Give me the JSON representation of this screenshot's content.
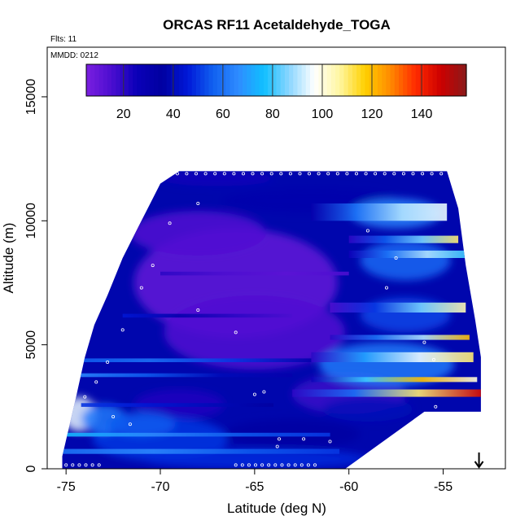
{
  "chart_data": {
    "type": "heatmap",
    "title": "ORCAS RF11 Acetaldehyde_TOGA",
    "flights_label": "Flts: 11",
    "date_label": "MMDD: 0212",
    "xlabel": "Latitude (deg N)",
    "ylabel": "Altitude (m)",
    "xlim": [
      -76,
      -51.7
    ],
    "ylim": [
      0,
      17000
    ],
    "x_ticks": [
      -75,
      -70,
      -65,
      -60,
      -55
    ],
    "x_tick_labels": [
      "-75",
      "-70",
      "-65",
      "-60",
      "-55"
    ],
    "y_ticks": [
      0,
      5000,
      10000,
      15000
    ],
    "y_tick_labels": [
      "0",
      "5000",
      "10000",
      "15000"
    ],
    "colorbar": {
      "min": 5,
      "max": 158,
      "ticks": [
        20,
        40,
        60,
        80,
        100,
        120,
        140
      ],
      "tick_labels": [
        "20",
        "40",
        "60",
        "80",
        "100",
        "120",
        "140"
      ],
      "colors": [
        "#7b1fe0",
        "#4b0ed0",
        "#0a00b8",
        "#0000a0",
        "#0018d8",
        "#1060f0",
        "#2f8cff",
        "#10bfff",
        "#8ad6ff",
        "#ffffff",
        "#fff6a0",
        "#ffd000",
        "#ff8a00",
        "#ff2a00",
        "#cc0000",
        "#8a1a1a"
      ]
    },
    "domain": {
      "lat_min": -75.2,
      "lat_max": -53,
      "alt_min": 0,
      "alt_max": 12000,
      "top_edge": [
        [
          -75.2,
          500
        ],
        [
          -74.5,
          2800
        ],
        [
          -74,
          4500
        ],
        [
          -73.5,
          5800
        ],
        [
          -72.8,
          7000
        ],
        [
          -72,
          8500
        ],
        [
          -71,
          10000
        ],
        [
          -70,
          11500
        ],
        [
          -69,
          12000
        ],
        [
          -54.8,
          12000
        ],
        [
          -54.2,
          10500
        ],
        [
          -53.8,
          8200
        ],
        [
          -53.3,
          6000
        ],
        [
          -53,
          4500
        ],
        [
          -53,
          2300
        ]
      ],
      "bottom_edge": [
        [
          -75.2,
          0
        ],
        [
          -60.2,
          0
        ],
        [
          -56,
          2300
        ],
        [
          -53,
          2300
        ]
      ]
    },
    "features": [
      {
        "name": "low-altitude southern gradient",
        "lat": -74.3,
        "alt": 2200,
        "value": 95
      },
      {
        "name": "northern high plume 3000m",
        "lat": -53.6,
        "alt": 3100,
        "value": 145
      },
      {
        "name": "northern high plume 4800m",
        "lat": -53.9,
        "alt": 4800,
        "value": 110
      },
      {
        "name": "northern high plume 9000m",
        "lat": -54.5,
        "alt": 9000,
        "value": 110
      },
      {
        "name": "upper layer maximum",
        "lat": -54.8,
        "alt": 10400,
        "value": 95
      },
      {
        "name": "mid-troposphere minimum",
        "lat": -66,
        "alt": 7500,
        "value": 10
      }
    ],
    "flight_arrow": {
      "lat": -53.1,
      "direction": "down"
    }
  }
}
